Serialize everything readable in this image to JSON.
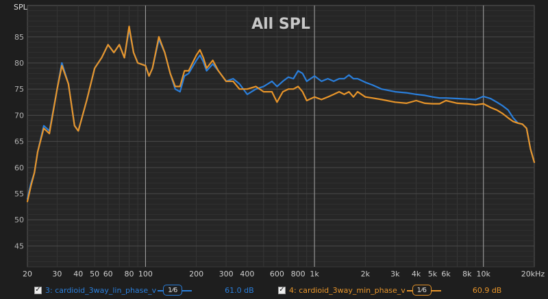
{
  "chart_data": {
    "type": "line",
    "title": "All SPL",
    "ylabel": "SPL",
    "xlabel": "",
    "x_scale": "log",
    "xlim": [
      20,
      20000
    ],
    "ylim": [
      41,
      91
    ],
    "grid": true,
    "y_ticks": [
      "85",
      "80",
      "75",
      "70",
      "65",
      "60",
      "55",
      "50",
      "45"
    ],
    "y_tick_values": [
      85,
      80,
      75,
      70,
      65,
      60,
      55,
      50,
      45
    ],
    "x_tick_values": [
      20,
      30,
      40,
      50,
      60,
      80,
      100,
      200,
      300,
      400,
      600,
      800,
      1000,
      2000,
      3000,
      4000,
      5000,
      6000,
      8000,
      10000,
      20000
    ],
    "x_ticks": [
      "20",
      "30",
      "40",
      "50",
      "60",
      "80",
      "100",
      "200",
      "300",
      "400",
      "600",
      "800",
      "1k",
      "2k",
      "3k",
      "4k",
      "5k",
      "6k",
      "8k",
      "10k",
      "20kHz"
    ],
    "x": [
      20,
      21,
      22,
      23,
      25,
      27,
      30,
      32,
      35,
      38,
      40,
      45,
      50,
      55,
      60,
      65,
      70,
      75,
      80,
      85,
      90,
      100,
      105,
      110,
      120,
      130,
      140,
      150,
      160,
      170,
      180,
      200,
      210,
      220,
      230,
      250,
      270,
      300,
      330,
      360,
      400,
      450,
      500,
      560,
      600,
      650,
      700,
      750,
      800,
      850,
      900,
      1000,
      1100,
      1200,
      1300,
      1400,
      1500,
      1600,
      1700,
      1800,
      2000,
      2200,
      2500,
      3000,
      3500,
      4000,
      4500,
      5000,
      5500,
      6000,
      7000,
      8000,
      9000,
      10000,
      11000,
      12000,
      13000,
      14000,
      15000,
      16000,
      17000,
      18000,
      19000,
      20000
    ],
    "series": [
      {
        "name": "3: cardioid_3way_lin_phase_v",
        "color": "#2a7fdc",
        "values": [
          54,
          57,
          59,
          63,
          68,
          67,
          75,
          80,
          76,
          68,
          67,
          73,
          79,
          81,
          83.5,
          82,
          83.5,
          81,
          86.5,
          82,
          80,
          79.5,
          77.5,
          79,
          84.5,
          82,
          78,
          75,
          74.5,
          77.5,
          78,
          80.5,
          81.5,
          80.2,
          78.5,
          79.8,
          78.5,
          76.5,
          77,
          76,
          74,
          75,
          75.5,
          76.5,
          75.5,
          76.5,
          77.3,
          77,
          78.5,
          78,
          76.5,
          77.5,
          76.5,
          77,
          76.5,
          77,
          77,
          77.7,
          77,
          77,
          76.3,
          75.8,
          75,
          74.5,
          74.3,
          74,
          73.8,
          73.5,
          73.3,
          73.3,
          73.2,
          73.1,
          73,
          73.6,
          73.2,
          72.5,
          71.8,
          71,
          69.5,
          68.5,
          68.3,
          67.5,
          63.5,
          61
        ]
      },
      {
        "name": "4: cardioid_3way_min_phase_v",
        "color": "#e8952a",
        "values": [
          53.5,
          56.5,
          59,
          63,
          67.5,
          66.5,
          75,
          79.5,
          76,
          68,
          67,
          73,
          79,
          81,
          83.5,
          82,
          83.5,
          81,
          87,
          82,
          80,
          79.5,
          77.5,
          79,
          85,
          82,
          78,
          75.5,
          75.5,
          78.5,
          78.5,
          81.5,
          82.5,
          81,
          79,
          80.5,
          78.5,
          76.5,
          76.5,
          75,
          75,
          75.5,
          74.5,
          74.5,
          72.5,
          74.5,
          75,
          75,
          75.5,
          74.5,
          72.8,
          73.5,
          73,
          73.5,
          74,
          74.5,
          74,
          74.5,
          73.5,
          74.5,
          73.5,
          73.3,
          73,
          72.5,
          72.3,
          72.8,
          72.3,
          72.2,
          72.2,
          72.8,
          72.3,
          72.2,
          72,
          72.2,
          71.5,
          71,
          70.3,
          69.5,
          68.8,
          68.5,
          68.3,
          67.5,
          63.5,
          61
        ]
      }
    ]
  },
  "legend": [
    {
      "checked": "✓",
      "label": "3: cardioid_3way_lin_phase_v",
      "smoothing": "1⁄6",
      "value": "61.0 dB",
      "color": "#2a7fdc"
    },
    {
      "checked": "✓",
      "label": "4: cardioid_3way_min_phase_v",
      "smoothing": "1⁄6",
      "value": "60.9 dB",
      "color": "#e8952a"
    }
  ]
}
